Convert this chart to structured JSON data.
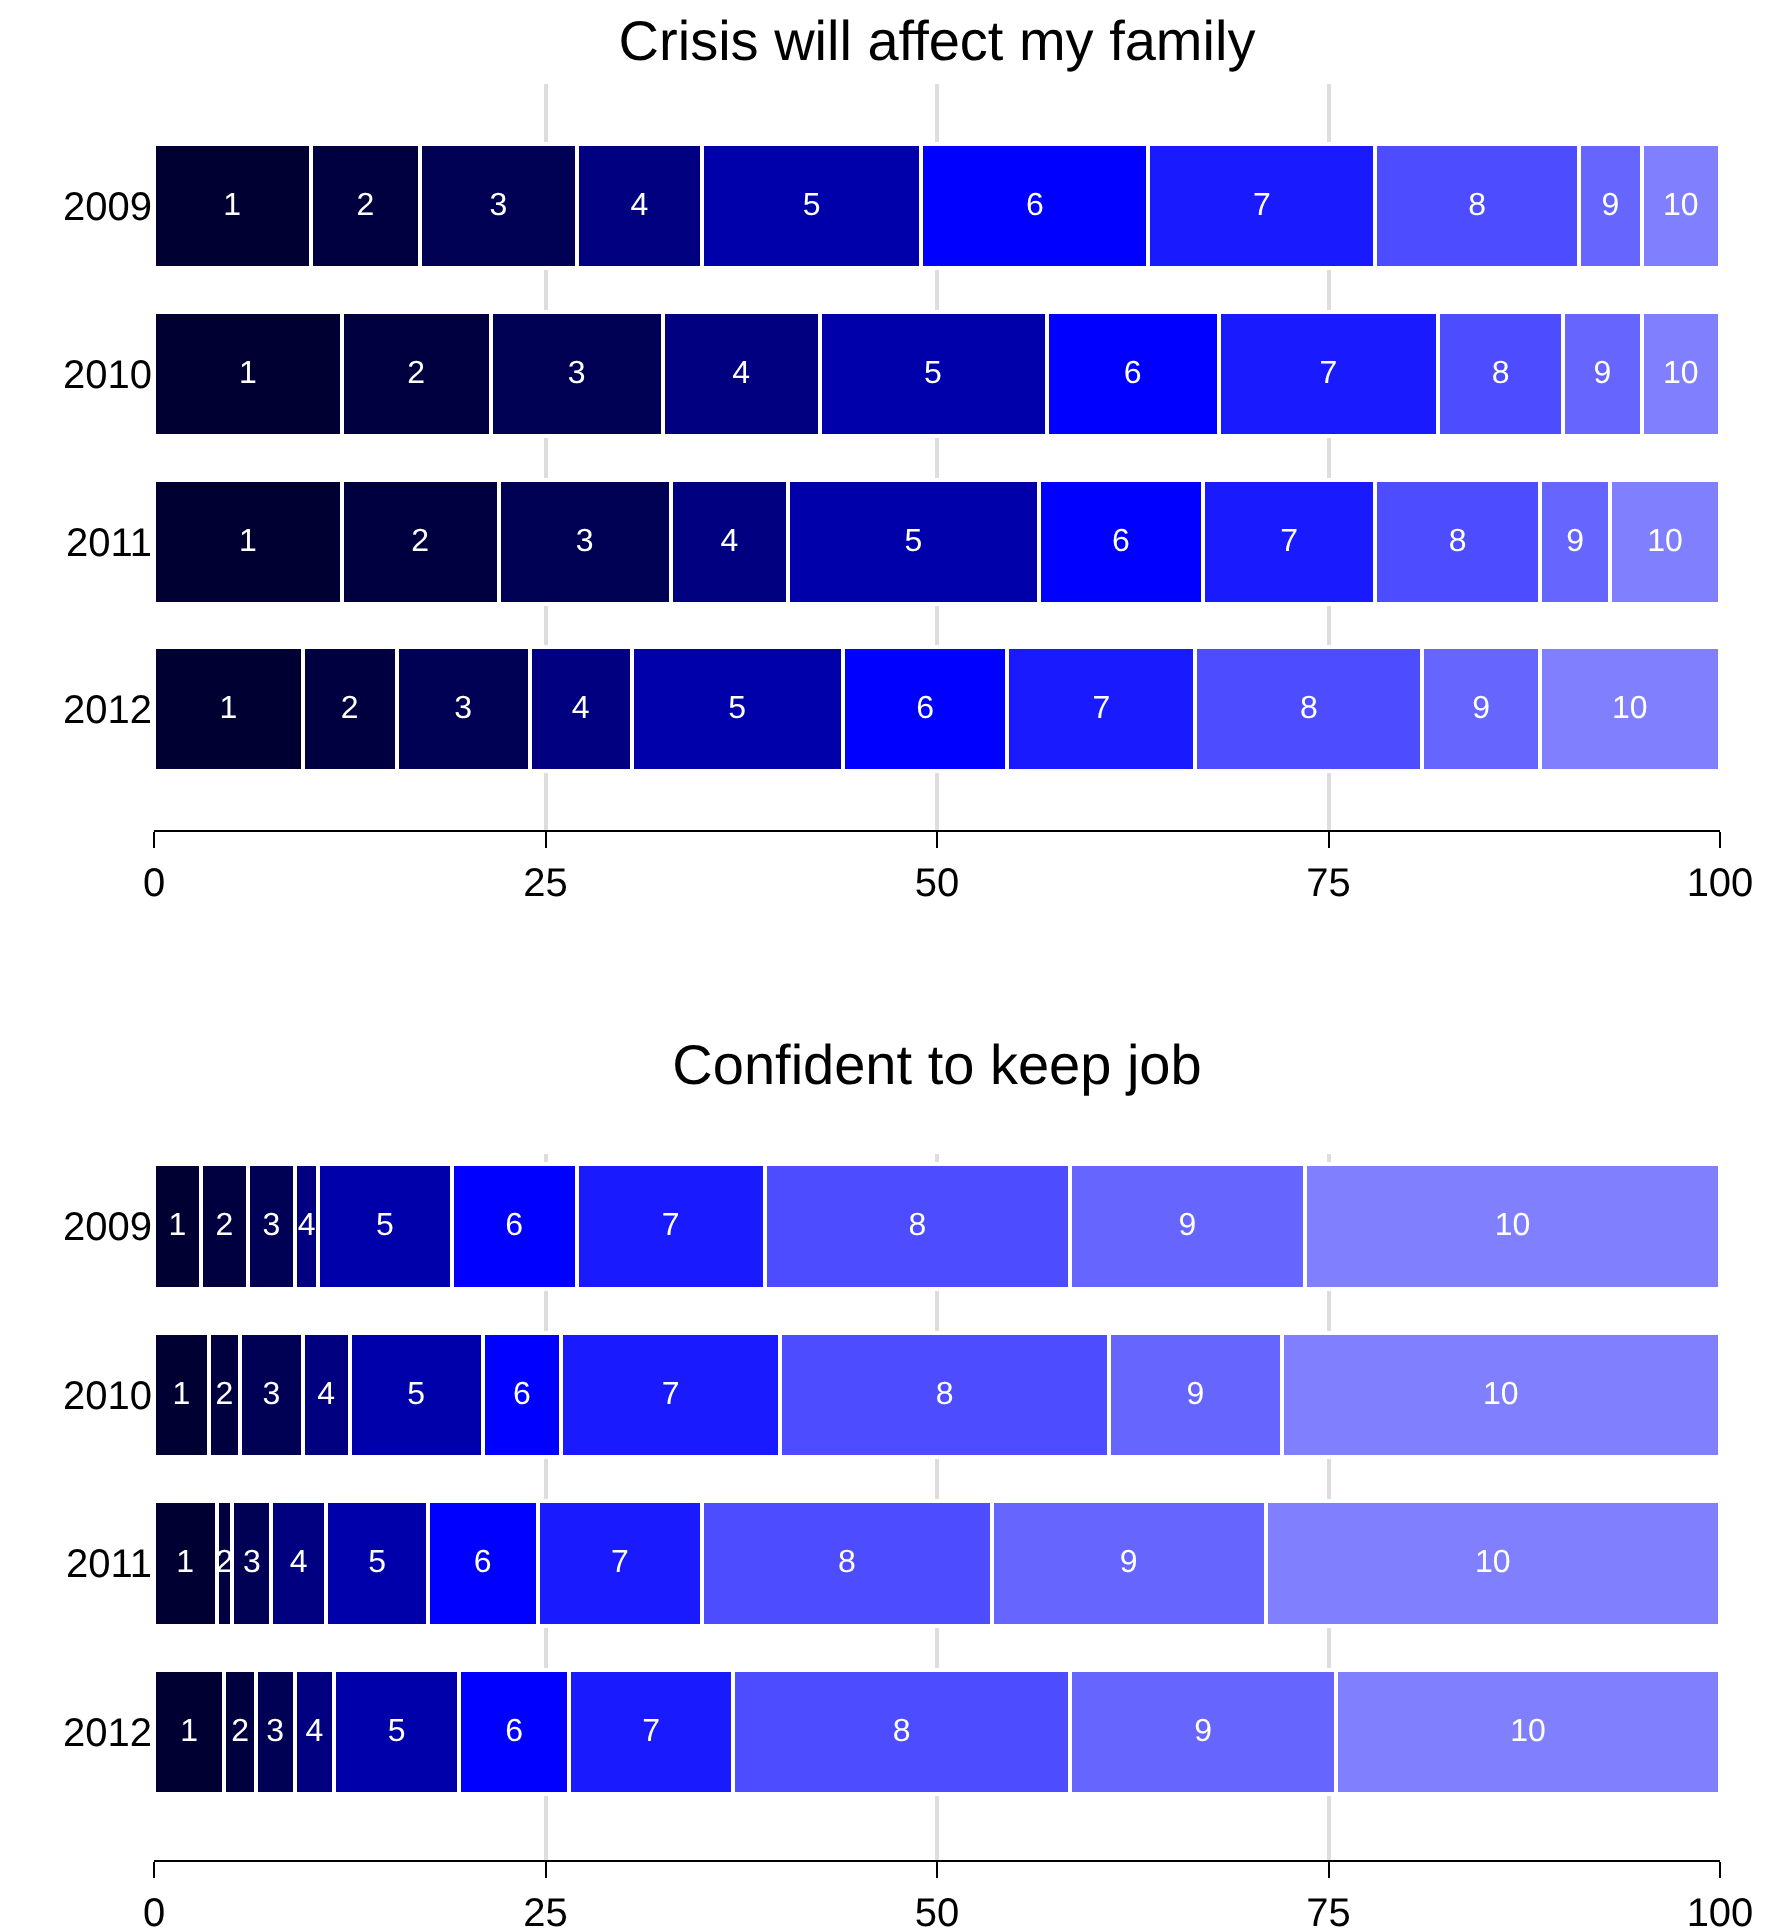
{
  "chart_data": [
    {
      "type": "bar",
      "title": "Crisis will affect my family",
      "orientation": "horizontal",
      "stacked": true,
      "grid": "x",
      "legend": false,
      "categories": [
        "2009",
        "2010",
        "2011",
        "2012"
      ],
      "xlim": [
        0,
        100
      ],
      "xticks": [
        0,
        25,
        50,
        75,
        100
      ],
      "series": [
        {
          "name": "1",
          "color": "#000033",
          "values": [
            10,
            12,
            12,
            9.5
          ]
        },
        {
          "name": "2",
          "color": "#000040",
          "values": [
            7,
            9.5,
            10,
            6
          ]
        },
        {
          "name": "3",
          "color": "#000055",
          "values": [
            10,
            11,
            11,
            8.5
          ]
        },
        {
          "name": "4",
          "color": "#000080",
          "values": [
            8,
            10,
            7.5,
            6.5
          ]
        },
        {
          "name": "5",
          "color": "#0000aa",
          "values": [
            14,
            14.5,
            16,
            13.5
          ]
        },
        {
          "name": "6",
          "color": "#0000ff",
          "values": [
            14.5,
            11,
            10.5,
            10.5
          ]
        },
        {
          "name": "7",
          "color": "#1a1aff",
          "values": [
            14.5,
            14,
            11,
            12
          ]
        },
        {
          "name": "8",
          "color": "#4d4dff",
          "values": [
            13,
            8,
            10.5,
            14.5
          ]
        },
        {
          "name": "9",
          "color": "#6666ff",
          "values": [
            4,
            5,
            4.5,
            7.5
          ]
        },
        {
          "name": "10",
          "color": "#8080ff",
          "values": [
            5,
            5,
            7,
            11.5
          ]
        }
      ]
    },
    {
      "type": "bar",
      "title": "Confident to keep job",
      "orientation": "horizontal",
      "stacked": true,
      "grid": "x",
      "legend": false,
      "categories": [
        "2009",
        "2010",
        "2011",
        "2012"
      ],
      "xlim": [
        0,
        100
      ],
      "xticks": [
        0,
        25,
        50,
        75,
        100
      ],
      "series": [
        {
          "name": "1",
          "color": "#000033",
          "values": [
            3,
            3.5,
            4,
            4.5
          ]
        },
        {
          "name": "2",
          "color": "#000040",
          "values": [
            3,
            2,
            1,
            2
          ]
        },
        {
          "name": "3",
          "color": "#000055",
          "values": [
            3,
            4,
            2.5,
            2.5
          ]
        },
        {
          "name": "4",
          "color": "#000080",
          "values": [
            1.5,
            3,
            3.5,
            2.5
          ]
        },
        {
          "name": "5",
          "color": "#0000aa",
          "values": [
            8.5,
            8.5,
            6.5,
            8
          ]
        },
        {
          "name": "6",
          "color": "#0000ff",
          "values": [
            8,
            5,
            7,
            7
          ]
        },
        {
          "name": "7",
          "color": "#1a1aff",
          "values": [
            12,
            14,
            10.5,
            10.5
          ]
        },
        {
          "name": "8",
          "color": "#4d4dff",
          "values": [
            19.5,
            21,
            18.5,
            21.5
          ]
        },
        {
          "name": "9",
          "color": "#6666ff",
          "values": [
            15,
            11,
            17.5,
            17
          ]
        },
        {
          "name": "10",
          "color": "#8080ff",
          "values": [
            26.5,
            28,
            29,
            24.5
          ]
        }
      ]
    }
  ]
}
